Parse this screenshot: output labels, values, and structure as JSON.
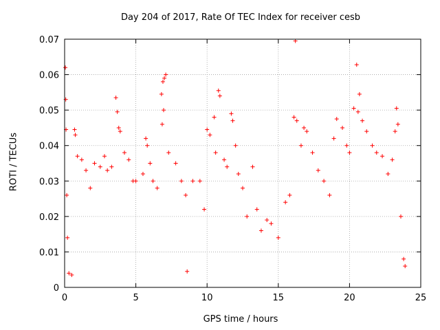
{
  "chart_data": {
    "type": "scatter",
    "title": "Day 204 of 2017, Rate Of TEC Index for receiver cesb",
    "xlabel": "GPS time / hours",
    "ylabel": "ROTI / TECUs",
    "xlim": [
      0,
      25
    ],
    "ylim": [
      0,
      0.07
    ],
    "x_ticks": [
      0,
      5,
      10,
      15,
      20,
      25
    ],
    "y_ticks": [
      0,
      0.01,
      0.02,
      0.03,
      0.04,
      0.05,
      0.06,
      0.07
    ],
    "x_tick_labels": [
      "0",
      "5",
      "10",
      "15",
      "20",
      "25"
    ],
    "y_tick_labels": [
      "0",
      "0.01",
      "0.02",
      "0.03",
      "0.04",
      "0.05",
      "0.06",
      "0.07"
    ],
    "grid": true,
    "marker": "+",
    "marker_color": "#ff0000",
    "points": [
      [
        0.05,
        0.062
      ],
      [
        0.08,
        0.053
      ],
      [
        0.1,
        0.0445
      ],
      [
        0.15,
        0.026
      ],
      [
        0.2,
        0.014
      ],
      [
        0.3,
        0.004
      ],
      [
        0.5,
        0.0035
      ],
      [
        0.7,
        0.0445
      ],
      [
        0.75,
        0.043
      ],
      [
        0.9,
        0.037
      ],
      [
        1.2,
        0.036
      ],
      [
        1.5,
        0.033
      ],
      [
        1.8,
        0.028
      ],
      [
        2.1,
        0.035
      ],
      [
        2.5,
        0.034
      ],
      [
        2.8,
        0.037
      ],
      [
        3.0,
        0.033
      ],
      [
        3.3,
        0.034
      ],
      [
        3.6,
        0.0535
      ],
      [
        3.7,
        0.0495
      ],
      [
        3.8,
        0.045
      ],
      [
        3.9,
        0.044
      ],
      [
        4.2,
        0.038
      ],
      [
        4.5,
        0.036
      ],
      [
        4.8,
        0.03
      ],
      [
        5.0,
        0.03
      ],
      [
        5.5,
        0.032
      ],
      [
        5.7,
        0.042
      ],
      [
        5.8,
        0.04
      ],
      [
        6.0,
        0.035
      ],
      [
        6.2,
        0.03
      ],
      [
        6.5,
        0.028
      ],
      [
        6.8,
        0.0545
      ],
      [
        6.9,
        0.058
      ],
      [
        7.0,
        0.059
      ],
      [
        7.1,
        0.06
      ],
      [
        6.95,
        0.05
      ],
      [
        6.85,
        0.046
      ],
      [
        7.3,
        0.038
      ],
      [
        7.8,
        0.035
      ],
      [
        8.2,
        0.03
      ],
      [
        8.5,
        0.026
      ],
      [
        8.6,
        0.0045
      ],
      [
        9.0,
        0.03
      ],
      [
        9.5,
        0.03
      ],
      [
        9.8,
        0.022
      ],
      [
        10.0,
        0.0445
      ],
      [
        10.2,
        0.043
      ],
      [
        10.5,
        0.048
      ],
      [
        10.8,
        0.0555
      ],
      [
        10.9,
        0.054
      ],
      [
        10.6,
        0.038
      ],
      [
        11.2,
        0.036
      ],
      [
        11.4,
        0.034
      ],
      [
        11.7,
        0.049
      ],
      [
        11.8,
        0.047
      ],
      [
        12.0,
        0.04
      ],
      [
        12.2,
        0.032
      ],
      [
        12.5,
        0.028
      ],
      [
        12.8,
        0.02
      ],
      [
        13.2,
        0.034
      ],
      [
        13.5,
        0.022
      ],
      [
        13.8,
        0.016
      ],
      [
        14.2,
        0.019
      ],
      [
        14.5,
        0.018
      ],
      [
        15.0,
        0.014
      ],
      [
        15.5,
        0.024
      ],
      [
        15.8,
        0.026
      ],
      [
        16.2,
        0.0695
      ],
      [
        16.1,
        0.048
      ],
      [
        16.3,
        0.047
      ],
      [
        16.6,
        0.04
      ],
      [
        16.8,
        0.045
      ],
      [
        17.0,
        0.044
      ],
      [
        17.4,
        0.038
      ],
      [
        17.8,
        0.033
      ],
      [
        18.2,
        0.03
      ],
      [
        18.6,
        0.026
      ],
      [
        18.9,
        0.042
      ],
      [
        19.1,
        0.0475
      ],
      [
        19.5,
        0.045
      ],
      [
        19.8,
        0.04
      ],
      [
        20.0,
        0.038
      ],
      [
        20.3,
        0.0505
      ],
      [
        20.5,
        0.0628
      ],
      [
        20.6,
        0.0495
      ],
      [
        20.7,
        0.0545
      ],
      [
        20.9,
        0.047
      ],
      [
        21.2,
        0.044
      ],
      [
        21.6,
        0.04
      ],
      [
        21.9,
        0.038
      ],
      [
        22.3,
        0.037
      ],
      [
        22.7,
        0.032
      ],
      [
        23.0,
        0.036
      ],
      [
        23.2,
        0.044
      ],
      [
        23.3,
        0.0505
      ],
      [
        23.4,
        0.046
      ],
      [
        23.6,
        0.02
      ],
      [
        23.8,
        0.008
      ],
      [
        23.9,
        0.006
      ]
    ]
  }
}
